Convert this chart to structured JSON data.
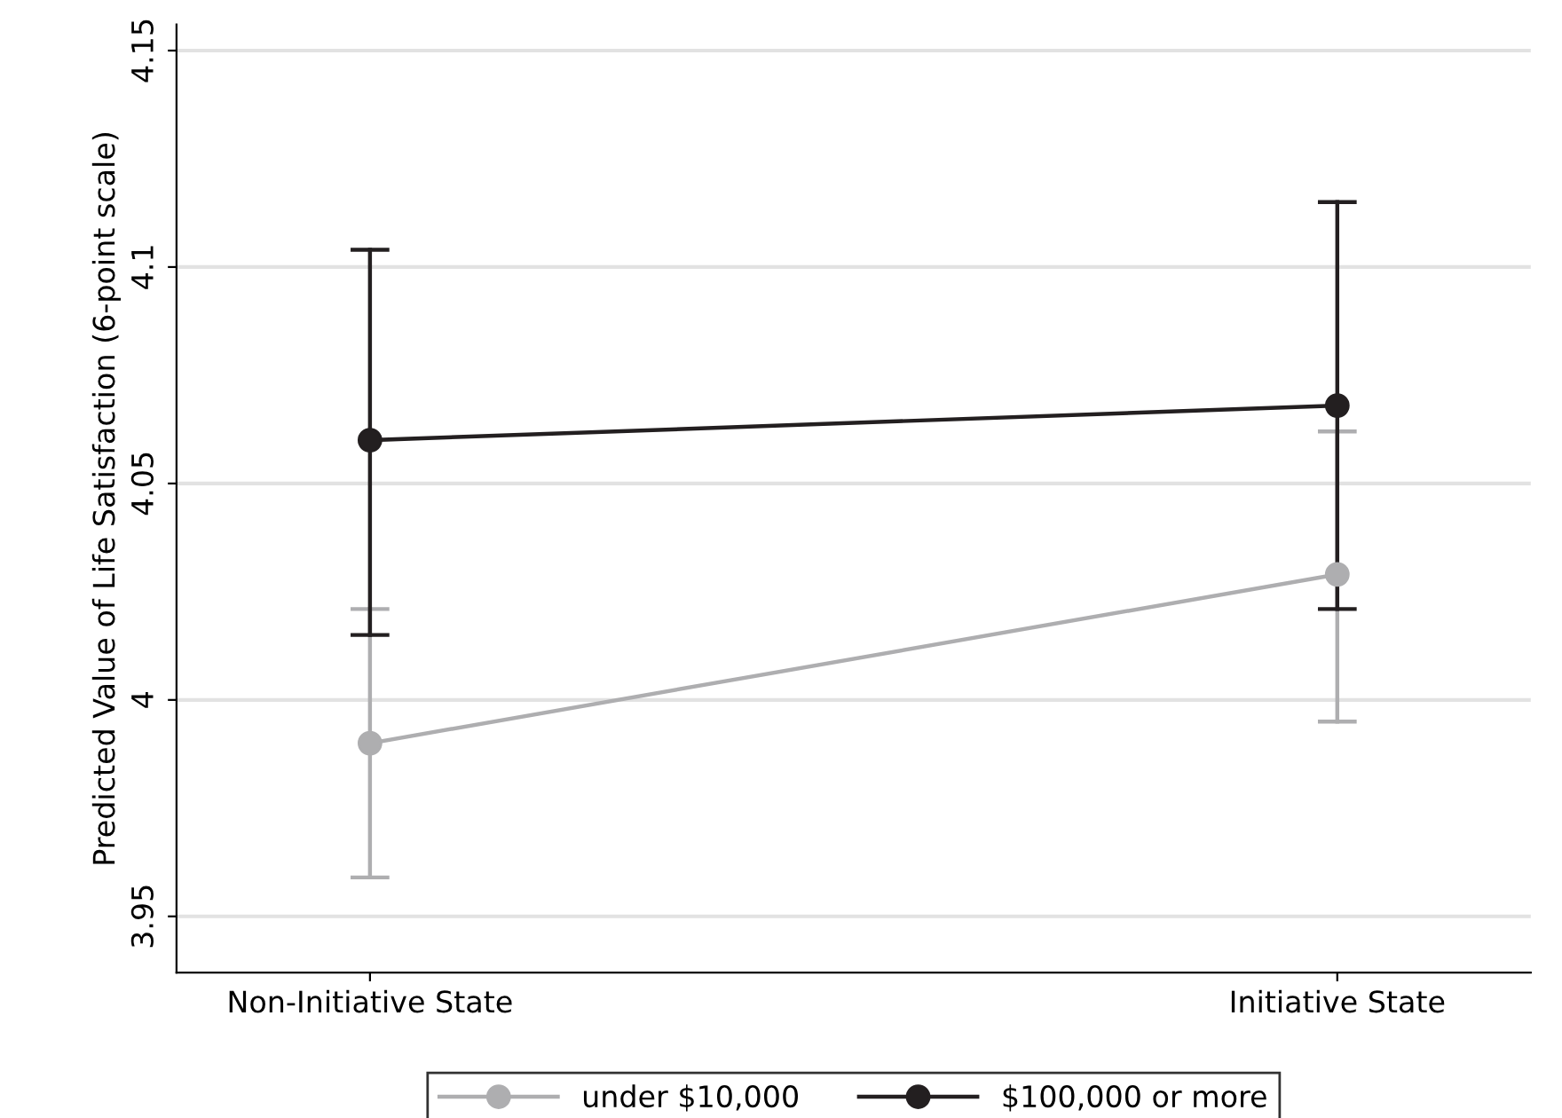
{
  "chart_data": {
    "type": "line",
    "ylabel": "Predicted Value of Life Satisfaction (6-point scale)",
    "categories": [
      "Non-Initiative State",
      "Initiative State"
    ],
    "series": [
      {
        "name": "under $10,000",
        "color": "#aeaeb0",
        "values": [
          3.99,
          4.029
        ],
        "errors": [
          [
            3.959,
            4.021
          ],
          [
            3.995,
            4.062
          ]
        ]
      },
      {
        "name": "$100,000 or more",
        "color": "#231f20",
        "values": [
          4.06,
          4.068
        ],
        "errors": [
          [
            4.015,
            4.104
          ],
          [
            4.021,
            4.115
          ]
        ]
      }
    ],
    "ylim": [
      3.937,
      4.156
    ],
    "yticks": [
      3.95,
      4,
      4.05,
      4.1,
      4.15
    ],
    "grid": "y",
    "legend": "bottom",
    "marker": "circle",
    "line_style": "solid"
  }
}
